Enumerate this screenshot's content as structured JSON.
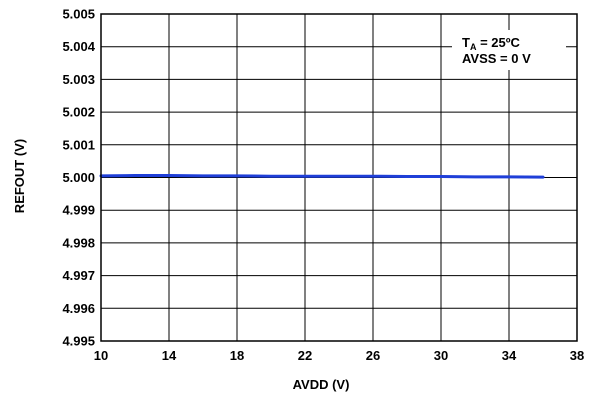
{
  "chart_data": {
    "type": "line",
    "xlabel": "AVDD (V)",
    "ylabel": "REFOUT (V)",
    "xlim": [
      10,
      38
    ],
    "ylim": [
      4.995,
      5.005
    ],
    "x_ticks": [
      "10",
      "14",
      "18",
      "22",
      "26",
      "30",
      "34",
      "38"
    ],
    "y_ticks": [
      "4.995",
      "4.996",
      "4.997",
      "4.998",
      "4.999",
      "5.000",
      "5.001",
      "5.002",
      "5.003",
      "5.004",
      "5.005"
    ],
    "grid": true,
    "series": [
      {
        "color": "#1f3fd8",
        "x": [
          10,
          12,
          14,
          16,
          18,
          20,
          22,
          24,
          26,
          28,
          30,
          32,
          34,
          36
        ],
        "y": [
          5.00005,
          5.00006,
          5.00006,
          5.00005,
          5.00005,
          5.00004,
          5.00004,
          5.00004,
          5.00004,
          5.00003,
          5.00003,
          5.00002,
          5.00002,
          5.00001
        ]
      }
    ],
    "annotation": {
      "line1_main": "T",
      "line1_sub": "A",
      "line1_rest": " = 25ºC",
      "line2": "AVSS = 0 V"
    }
  }
}
